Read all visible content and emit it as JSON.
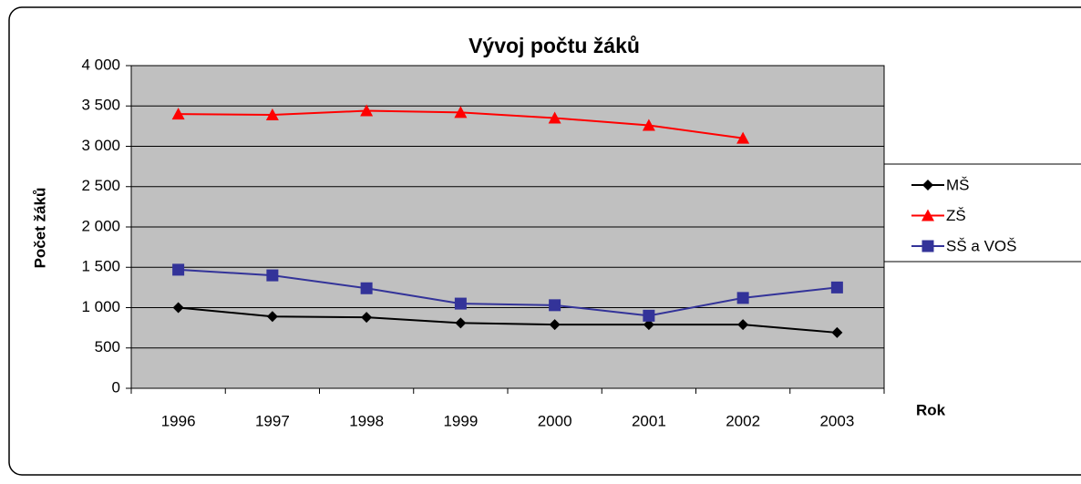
{
  "chart_data": {
    "type": "line",
    "title": "Vývoj počtu žáků",
    "x_label": "Rok",
    "y_label": "Počet žáků",
    "categories": [
      "1996",
      "1997",
      "1998",
      "1999",
      "2000",
      "2001",
      "2002",
      "2003"
    ],
    "series": [
      {
        "name": "MŠ",
        "color": "#000000",
        "marker": "diamond",
        "values": [
          1000,
          890,
          880,
          810,
          790,
          790,
          790,
          690
        ]
      },
      {
        "name": "ZŠ",
        "color": "#ff0000",
        "marker": "triangle",
        "values": [
          3400,
          3390,
          3440,
          3420,
          3350,
          3260,
          3100,
          null
        ]
      },
      {
        "name": "SŠ a VOŠ",
        "color": "#333399",
        "marker": "square",
        "values": [
          1470,
          1400,
          1240,
          1050,
          1030,
          900,
          1120,
          1250
        ]
      }
    ],
    "ylim": [
      0,
      4000
    ],
    "yticks": [
      0,
      500,
      {
        "value": 1000,
        "label": "1 000"
      },
      {
        "value": 1500,
        "label": "1 500"
      },
      {
        "value": 2000,
        "label": "2 000"
      },
      {
        "value": 2500,
        "label": "2 500"
      },
      {
        "value": 3000,
        "label": "3 000"
      },
      {
        "value": 3500,
        "label": "3 500"
      },
      {
        "value": 4000,
        "label": "4 000"
      }
    ],
    "grid": true,
    "legend": "right",
    "plot_background": "#c0c0c0"
  }
}
